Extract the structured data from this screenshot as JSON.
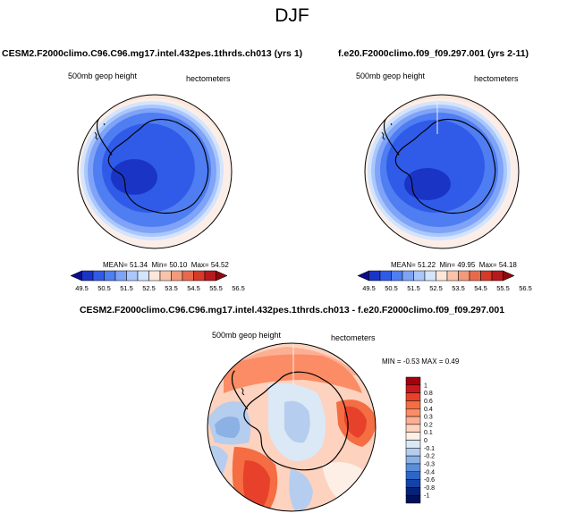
{
  "figure": {
    "season": "DJF",
    "left_panel_title": "CESM2.F2000climo.C96.C96.mg17.intel.432pes.1thrds.ch013 (yrs 1)",
    "right_panel_title": "f.e20.F2000climo.f09_f09.297.001 (yrs 2-11)",
    "diff_panel_title": "CESM2.F2000climo.C96.C96.mg17.intel.432pes.1thrds.ch013 - f.e20.F2000climo.f09_f09.297.001"
  },
  "chart_data": [
    {
      "type": "polar-contour-map",
      "name": "test-case",
      "variable_label": "500mb geop height",
      "units_label": "hectometers",
      "stats_text": {
        "mean_label": "MEAN=",
        "mean": "51.34",
        "min_label": "Min=",
        "min": "50.10",
        "max_label": "Max=",
        "max": "54.52"
      },
      "colorbar_levels": [
        "49.5",
        "50",
        "50.5",
        "51",
        "51.5",
        "52",
        "52.5",
        "53",
        "53.5",
        "54",
        "54.5",
        "55",
        "55.5",
        "56",
        "56.5"
      ],
      "colorbar_tick_labels": [
        "49.5",
        "50.5",
        "51.5",
        "52.5",
        "53.5",
        "54.5",
        "55.5",
        "56.5"
      ],
      "colorbar_colors": [
        "#0d0d8c",
        "#1a35c6",
        "#2f5be8",
        "#4f7df2",
        "#7ea3f7",
        "#aac6fb",
        "#d3e4fd",
        "#fde6da",
        "#f8c3aa",
        "#f29a7b",
        "#e86a4d",
        "#d53a2a",
        "#b8191c",
        "#8c0a0d"
      ]
    },
    {
      "type": "polar-contour-map",
      "name": "reference-case",
      "variable_label": "500mb geop height",
      "units_label": "hectometers",
      "stats_text": {
        "mean_label": "MEAN=",
        "mean": "51.22",
        "min_label": "Min=",
        "min": "49.95",
        "max_label": "Max=",
        "max": "54.18"
      },
      "colorbar_levels": [
        "49.5",
        "50",
        "50.5",
        "51",
        "51.5",
        "52",
        "52.5",
        "53",
        "53.5",
        "54",
        "54.5",
        "55",
        "55.5",
        "56",
        "56.5"
      ],
      "colorbar_tick_labels": [
        "49.5",
        "50.5",
        "51.5",
        "52.5",
        "53.5",
        "54.5",
        "55.5",
        "56.5"
      ],
      "colorbar_colors": [
        "#0d0d8c",
        "#1a35c6",
        "#2f5be8",
        "#4f7df2",
        "#7ea3f7",
        "#aac6fb",
        "#d3e4fd",
        "#fde6da",
        "#f8c3aa",
        "#f29a7b",
        "#e86a4d",
        "#d53a2a",
        "#b8191c",
        "#8c0a0d"
      ]
    },
    {
      "type": "polar-contour-map",
      "name": "difference",
      "variable_label": "500mb geop height",
      "units_label": "hectometers",
      "stats_text": {
        "min_label": "MIN =",
        "min": "-0.53",
        "max_label": "MAX =",
        "max": "0.49"
      },
      "colorbar_levels": [
        "1",
        "0.8",
        "0.6",
        "0.4",
        "0.3",
        "0.2",
        "0.1",
        "0",
        "-0.1",
        "-0.2",
        "-0.3",
        "-0.4",
        "-0.6",
        "-0.8",
        "-1"
      ],
      "colorbar_colors": [
        "#a5000d",
        "#cb181d",
        "#e8412b",
        "#f46d43",
        "#fb8c65",
        "#fcaf93",
        "#fdd2bf",
        "#fdeee6",
        "#dbe8f6",
        "#b5cdee",
        "#8cb1e5",
        "#5b8fd8",
        "#2e66c6",
        "#1443a8",
        "#08227a",
        "#00125a"
      ]
    }
  ]
}
